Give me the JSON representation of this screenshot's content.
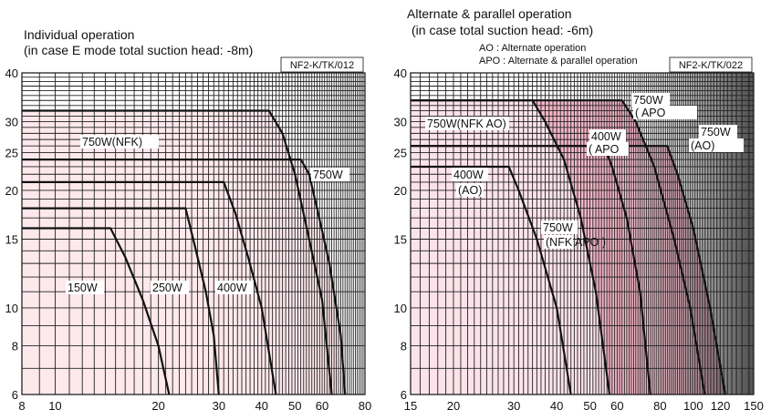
{
  "chart_data": [
    {
      "type": "line",
      "title": "Individual operation",
      "subtitle": "(in case E mode total suction head: -8m)",
      "code": "NF2-K/TK/012",
      "x_scale": "log",
      "y_scale": "log",
      "xlim": [
        8,
        80
      ],
      "ylim": [
        6,
        40
      ],
      "x_ticks": [
        8,
        10,
        20,
        30,
        40,
        50,
        60,
        80
      ],
      "y_ticks": [
        6,
        8,
        10,
        15,
        20,
        25,
        30,
        40
      ],
      "grid": true,
      "series": [
        {
          "name": "150W",
          "points": [
            [
              8,
              16
            ],
            [
              14.5,
              16
            ],
            [
              16,
              13.5
            ],
            [
              18,
              10.5
            ],
            [
              20,
              8
            ],
            [
              21.5,
              6
            ]
          ]
        },
        {
          "name": "250W",
          "points": [
            [
              8,
              18
            ],
            [
              24,
              18
            ],
            [
              25.5,
              14.5
            ],
            [
              27.5,
              11
            ],
            [
              29,
              8.5
            ],
            [
              30,
              6
            ]
          ]
        },
        {
          "name": "400W",
          "points": [
            [
              8,
              21
            ],
            [
              31,
              21
            ],
            [
              33.5,
              17.5
            ],
            [
              36.5,
              13.5
            ],
            [
              40,
              10
            ],
            [
              44,
              6
            ]
          ]
        },
        {
          "name": "750W(NFK)",
          "points": [
            [
              8,
              32
            ],
            [
              42,
              32
            ],
            [
              46,
              28
            ],
            [
              50,
              22
            ],
            [
              55,
              15
            ],
            [
              60,
              10.5
            ],
            [
              64,
              6
            ]
          ]
        },
        {
          "name": "750W",
          "points": [
            [
              8,
              24
            ],
            [
              52,
              24
            ],
            [
              55,
              22
            ],
            [
              58,
              18
            ],
            [
              63,
              13
            ],
            [
              68,
              8.5
            ],
            [
              70,
              6
            ]
          ]
        }
      ],
      "labels": [
        "750W(NFK)",
        "750W",
        "150W",
        "250W",
        "400W"
      ]
    },
    {
      "type": "line",
      "title": "Alternate & parallel operation",
      "subtitle": "(in case total suction head: -6m)",
      "code": "NF2-K/TK/022",
      "legend": [
        "AO : Alternate operation",
        "APO : Alternate & parallel operation"
      ],
      "x_scale": "log",
      "y_scale": "log",
      "xlim": [
        15,
        150
      ],
      "ylim": [
        6,
        40
      ],
      "x_ticks": [
        15,
        20,
        30,
        40,
        50,
        60,
        80,
        100,
        120,
        150
      ],
      "y_ticks": [
        6,
        8,
        10,
        15,
        20,
        25,
        30,
        40
      ],
      "grid": true,
      "series": [
        {
          "name": "400W (AO)",
          "points": [
            [
              15,
              23
            ],
            [
              29,
              23
            ],
            [
              31,
              20
            ],
            [
              35,
              15
            ],
            [
              40,
              10
            ],
            [
              44,
              6
            ]
          ]
        },
        {
          "name": "750W (AO)",
          "points": [
            [
              15,
              34
            ],
            [
              34,
              34
            ],
            [
              37,
              30
            ],
            [
              42,
              24
            ],
            [
              47,
              17
            ],
            [
              52,
              11
            ],
            [
              57,
              6
            ]
          ]
        },
        {
          "name": "400W (APO)",
          "points": [
            [
              15,
              26
            ],
            [
              55,
              26
            ],
            [
              58,
              23
            ],
            [
              64,
              17
            ],
            [
              70,
              11
            ],
            [
              75,
              6
            ]
          ]
        },
        {
          "name": "750W (NFK APO)",
          "points": [
            [
              15,
              34
            ],
            [
              62,
              34
            ],
            [
              68,
              30
            ],
            [
              77,
              23
            ],
            [
              88,
              15
            ],
            [
              98,
              10
            ],
            [
              108,
              6
            ]
          ]
        },
        {
          "name": "750W (APO)",
          "points": [
            [
              15,
              26
            ],
            [
              84,
              26
            ],
            [
              90,
              22
            ],
            [
              100,
              16
            ],
            [
              112,
              10
            ],
            [
              124,
              6
            ]
          ]
        }
      ],
      "labels": [
        "750W(NFK AO)",
        "400W",
        "(AO)",
        "400W",
        "( APO",
        "750W",
        "(NFK APO )",
        "750W",
        "( APO",
        "750W",
        "(AO)"
      ]
    }
  ]
}
